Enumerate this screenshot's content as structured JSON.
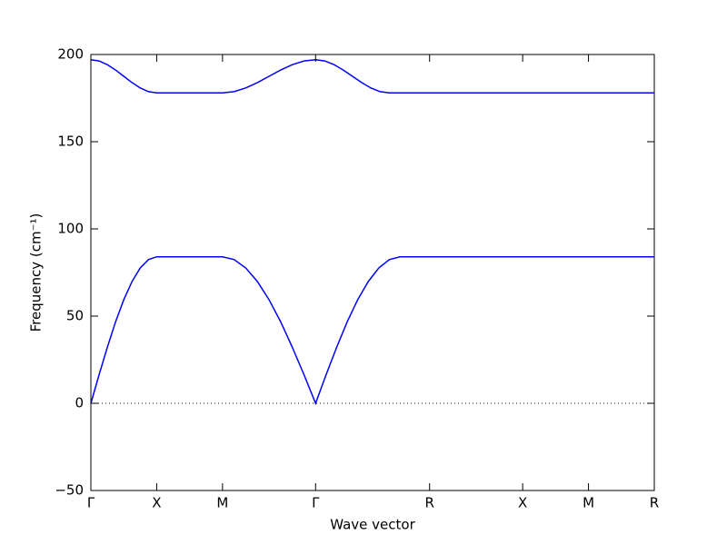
{
  "chart_data": {
    "type": "line",
    "xlabel": "Wave vector",
    "ylabel": "Frequency (cm⁻¹)",
    "xlim": [
      0,
      4.28
    ],
    "xticks": [
      {
        "value": 0,
        "label": "Γ"
      },
      {
        "value": 0.5,
        "label": "X"
      },
      {
        "value": 1.0,
        "label": "M"
      },
      {
        "value": 1.707,
        "label": "Γ"
      },
      {
        "value": 2.573,
        "label": "R"
      },
      {
        "value": 3.28,
        "label": "X"
      },
      {
        "value": 3.78,
        "label": "M"
      },
      {
        "value": 4.28,
        "label": "R"
      }
    ],
    "ylim": [
      -50,
      200
    ],
    "yticks": [
      {
        "value": -50,
        "label": "−50"
      },
      0,
      50,
      100,
      150,
      200
    ],
    "zero_line": 0,
    "series": [
      {
        "color": "#0000ff",
        "x": [
          0,
          0.0625,
          0.125,
          0.1875,
          0.25,
          0.3125,
          0.375,
          0.4375,
          0.5,
          0.75,
          1.0,
          1.0884,
          1.1768,
          1.2652,
          1.3536,
          1.442,
          1.5304,
          1.6188,
          1.707,
          1.787,
          1.867,
          1.947,
          2.027,
          2.107,
          2.187,
          2.267,
          2.347,
          2.573,
          3.28,
          3.78,
          4.28
        ],
        "values": [
          0,
          16.4,
          32.1,
          46.7,
          59.4,
          69.8,
          77.6,
          82.4,
          84,
          84,
          84,
          82.4,
          77.6,
          69.8,
          59.4,
          46.7,
          32.1,
          16.4,
          0,
          16.4,
          32.1,
          46.7,
          59.4,
          69.8,
          77.6,
          82.4,
          84,
          84,
          84,
          84,
          84
        ]
      },
      {
        "color": "#0000ff",
        "x": [
          0,
          0.0625,
          0.125,
          0.1875,
          0.25,
          0.3125,
          0.375,
          0.4375,
          0.5,
          0.75,
          1.0,
          1.0884,
          1.1768,
          1.2652,
          1.3536,
          1.442,
          1.5304,
          1.6188,
          1.707,
          1.777,
          1.847,
          1.917,
          1.987,
          2.057,
          2.127,
          2.197,
          2.267,
          2.573,
          3.28,
          3.78,
          4.28
        ],
        "values": [
          197,
          196.3,
          194.2,
          191.1,
          187.5,
          183.9,
          180.8,
          178.7,
          178,
          178,
          178,
          178.7,
          180.8,
          183.9,
          187.5,
          191.1,
          194.2,
          196.3,
          197,
          196.3,
          194.2,
          191.1,
          187.5,
          183.9,
          180.8,
          178.7,
          178,
          178,
          178,
          178,
          178
        ]
      }
    ]
  }
}
